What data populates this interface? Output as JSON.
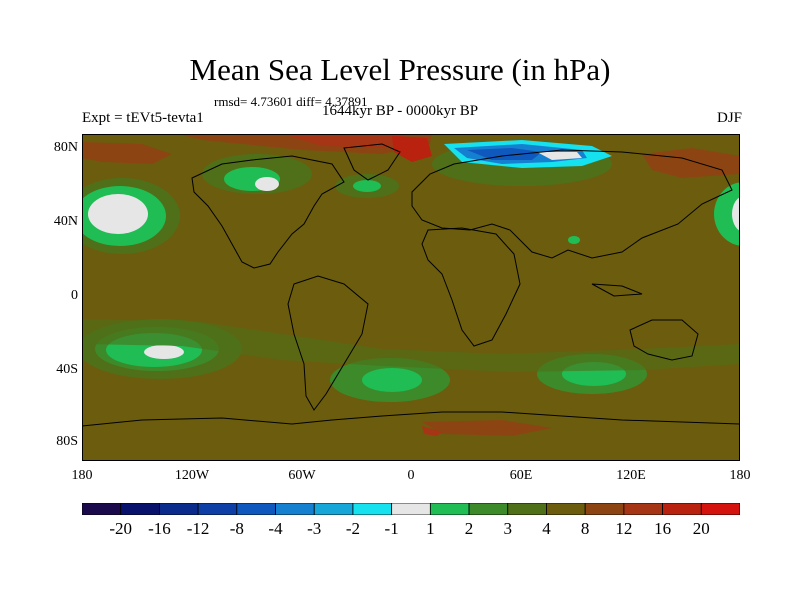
{
  "title": "Mean Sea Level Pressure (in hPa)",
  "stats": "rmsd= 4.73601 diff= 4.37891",
  "experiment": "Expt = tEVt5-tevta1",
  "period": "1644kyr BP - 0000kyr BP",
  "season": "DJF",
  "lat_labels": [
    "80N",
    "40N",
    "0",
    "40S",
    "80S"
  ],
  "lon_labels": [
    "180",
    "120W",
    "60W",
    "0",
    "60E",
    "120E",
    "180"
  ],
  "colorbar": {
    "labels": [
      "-20",
      "-16",
      "-12",
      "-8",
      "-4",
      "-3",
      "-2",
      "-1",
      "1",
      "2",
      "3",
      "4",
      "8",
      "12",
      "16",
      "20"
    ],
    "colors": [
      "#1a0a4c",
      "#08116b",
      "#0a2a8c",
      "#0d3fa6",
      "#0f58bd",
      "#1680d0",
      "#16a6d8",
      "#15e1ef",
      "#e6e6e6",
      "#1fbd53",
      "#3d8a2a",
      "#4f7019",
      "#6b5d0d",
      "#8c4512",
      "#a53515",
      "#b8220f",
      "#d4120e"
    ]
  },
  "map": {
    "background_color": "#6b5d0d",
    "lat_range": [
      -90,
      90
    ],
    "lon_range": [
      -180,
      180
    ]
  }
}
